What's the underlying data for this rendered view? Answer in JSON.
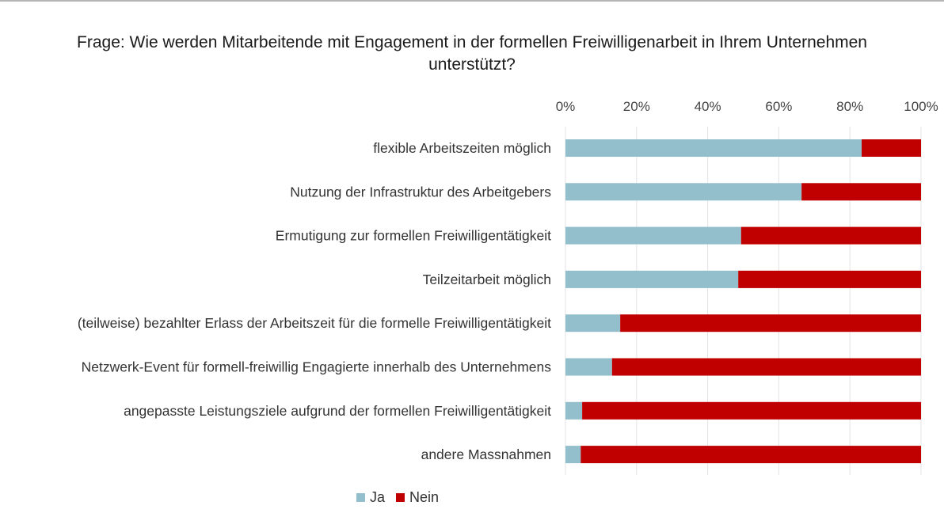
{
  "chart_data": {
    "type": "bar",
    "orientation": "horizontal",
    "stacked": true,
    "title": "Frage: Wie werden Mitarbeitende mit Engagement in der formellen Freiwilligenarbeit in Ihrem Unternehmen unterstützt?",
    "title_lines": [
      "Frage: Wie werden Mitarbeitende mit Engagement in der formellen Freiwilligenarbeit in Ihrem Unternehmen",
      "unterstützt?"
    ],
    "xlabel": "",
    "ylabel": "",
    "xlim": [
      0,
      100
    ],
    "x_ticks": [
      "0%",
      "20%",
      "40%",
      "60%",
      "80%",
      "100%"
    ],
    "x_tick_values": [
      0,
      20,
      40,
      60,
      80,
      100
    ],
    "x_axis_position": "top",
    "grid": true,
    "legend_position": "bottom",
    "categories": [
      "flexible Arbeitszeiten möglich",
      "Nutzung der Infrastruktur des Arbeitgebers",
      "Ermutigung zur formellen Freiwilligentätigkeit",
      "Teilzeitarbeit möglich",
      "(teilweise) bezahlter Erlass der Arbeitszeit für die formelle Freiwilligentätigkeit",
      "Netzwerk-Event für formell-freiwillig Engagierte innerhalb des Unternehmens",
      "angepasste Leistungsziele aufgrund der formellen Freiwilligentätigkeit",
      "andere Massnahmen"
    ],
    "series": [
      {
        "name": "Ja",
        "color": "#92bfcb",
        "values": [
          83.3,
          66.4,
          49.4,
          48.6,
          15.4,
          13.1,
          4.7,
          4.3
        ]
      },
      {
        "name": "Nein",
        "color": "#c00000",
        "values": [
          16.7,
          33.6,
          50.6,
          51.4,
          84.6,
          86.9,
          95.3,
          95.7
        ]
      }
    ]
  }
}
